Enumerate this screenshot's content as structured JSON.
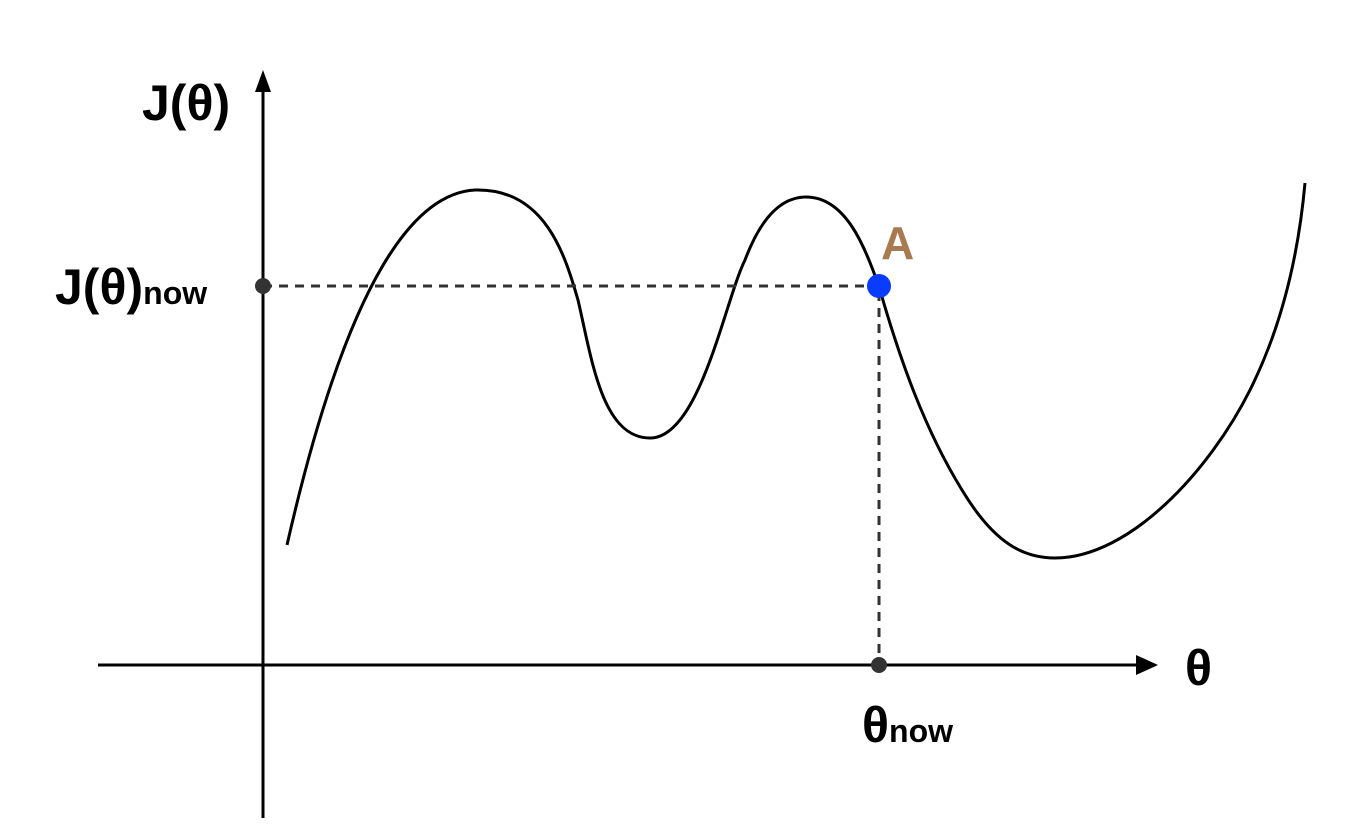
{
  "labels": {
    "y_axis": "J(θ)",
    "x_axis": "θ",
    "j_now_main": "J(θ)",
    "j_now_sub": "now",
    "theta_now_main": "θ",
    "theta_now_sub": "now",
    "point_a": "A"
  },
  "colors": {
    "axis": "#000000",
    "curve": "#000000",
    "guide": "#333333",
    "point": "#0a3cff",
    "point_label": "#a87a50",
    "marker": "#333333"
  }
}
